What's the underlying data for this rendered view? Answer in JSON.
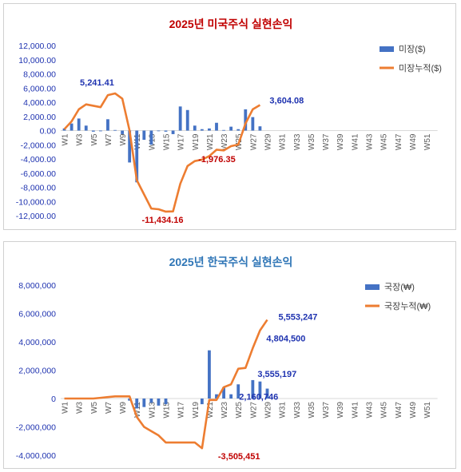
{
  "chart_data": [
    {
      "type": "bar",
      "title": "2025년 미국주식 실현손익",
      "title_color": "#c00000",
      "ylim": [
        -12000,
        12000
      ],
      "ytick_step": 2000,
      "yticks": [
        "12,000.00",
        "10,000.00",
        "8,000.00",
        "6,000.00",
        "4,000.00",
        "2,000.00",
        "0.00",
        "-2,000.00",
        "-4,000.00",
        "-6,000.00",
        "-8,000.00",
        "-10,000.00",
        "-12,000.00"
      ],
      "xtick_labels": [
        "W1",
        "W3",
        "W5",
        "W7",
        "W9",
        "W11",
        "W13",
        "W15",
        "W17",
        "W19",
        "W21",
        "W23",
        "W25",
        "W27",
        "W29",
        "W31",
        "W33",
        "W35",
        "W37",
        "W39",
        "W41",
        "W43",
        "W45",
        "W47",
        "W49",
        "W51"
      ],
      "weeks": 52,
      "legend": [
        "미장($)",
        "미장누적($)"
      ],
      "legend_position": "right",
      "series": [
        {
          "name": "미장($)",
          "kind": "bar",
          "color": "#4472c4",
          "values": [
            300,
            1000,
            1700,
            700,
            -150,
            -100,
            1600,
            80,
            -500,
            -4500,
            -7300,
            -1300,
            -2000,
            -50,
            -150,
            -500,
            3400,
            2900,
            700,
            200,
            300,
            1100,
            80,
            550,
            200,
            3000,
            1900,
            600
          ]
        },
        {
          "name": "미장누적($)",
          "kind": "line",
          "color": "#ed7d31",
          "values": [
            200,
            1300,
            3000,
            3700,
            3500,
            3300,
            5000,
            5241.41,
            4500,
            0,
            -7000,
            -9000,
            -11000,
            -11100,
            -11434.16,
            -11400,
            -7500,
            -5000,
            -4300,
            -4100,
            -3600,
            -2700,
            -2800,
            -2200,
            -1976.35,
            1000,
            3000,
            3604.08
          ]
        }
      ],
      "annotations": [
        {
          "text": "5,241.41",
          "week": 8,
          "value": 5241.41,
          "color": "#1f33b0"
        },
        {
          "text": "3,604.08",
          "week": 28,
          "value": 3604.08,
          "color": "#1f33b0"
        },
        {
          "text": "-1,976.35",
          "week": 25,
          "value": -1976.35,
          "color": "#c00000"
        },
        {
          "text": "-11,434.16",
          "week": 15,
          "value": -11434.16,
          "color": "#c00000"
        }
      ]
    },
    {
      "type": "bar",
      "title": "2025년 한국주식 실현손익",
      "title_color": "#2e75b6",
      "ylim": [
        -4000000,
        8000000
      ],
      "ytick_step": 2000000,
      "yticks": [
        "8,000,000",
        "6,000,000",
        "4,000,000",
        "2,000,000",
        "0",
        "-2,000,000",
        "-4,000,000"
      ],
      "xtick_labels": [
        "W1",
        "W3",
        "W5",
        "W7",
        "W9",
        "W11",
        "W13",
        "W15",
        "W17",
        "W19",
        "W21",
        "W23",
        "W25",
        "W27",
        "W29",
        "W31",
        "W33",
        "W35",
        "W37",
        "W39",
        "W41",
        "W43",
        "W45",
        "W47",
        "W49",
        "W51"
      ],
      "weeks": 52,
      "legend": [
        "국장(₩)",
        "국장누적(₩)"
      ],
      "legend_position": "right",
      "series": [
        {
          "name": "국장(₩)",
          "kind": "bar",
          "color": "#4472c4",
          "values": [
            0,
            0,
            0,
            0,
            0,
            0,
            0,
            0,
            0,
            -150000,
            -700000,
            -600000,
            -300000,
            -500000,
            -400000,
            0,
            0,
            0,
            0,
            -400000,
            3400000,
            300000,
            800000,
            300000,
            1000000,
            0,
            1300000,
            1200000,
            700000
          ]
        },
        {
          "name": "국장누적(₩)",
          "kind": "line",
          "color": "#ed7d31",
          "values": [
            0,
            0,
            0,
            0,
            0,
            50000,
            100000,
            150000,
            150000,
            150000,
            -1300000,
            -2000000,
            -2300000,
            -2600000,
            -3100000,
            -3100000,
            -3100000,
            -3100000,
            -3100000,
            -3505451,
            -100000,
            -100000,
            800000,
            1000000,
            2100000,
            2160746,
            3555197,
            4804500,
            5553247
          ]
        }
      ],
      "annotations": [
        {
          "text": "5,553,247",
          "week": 29,
          "value": 5553247,
          "color": "#1f33b0"
        },
        {
          "text": "4,804,500",
          "week": 28,
          "value": 4804500,
          "color": "#1f33b0"
        },
        {
          "text": "3,555,197",
          "week": 27,
          "value": 3555197,
          "color": "#1f33b0"
        },
        {
          "text": "2,160,746",
          "week": 26,
          "value": 2160746,
          "color": "#1f33b0"
        },
        {
          "text": "-3,505,451",
          "week": 20,
          "value": -3505451,
          "color": "#c00000"
        }
      ]
    }
  ]
}
